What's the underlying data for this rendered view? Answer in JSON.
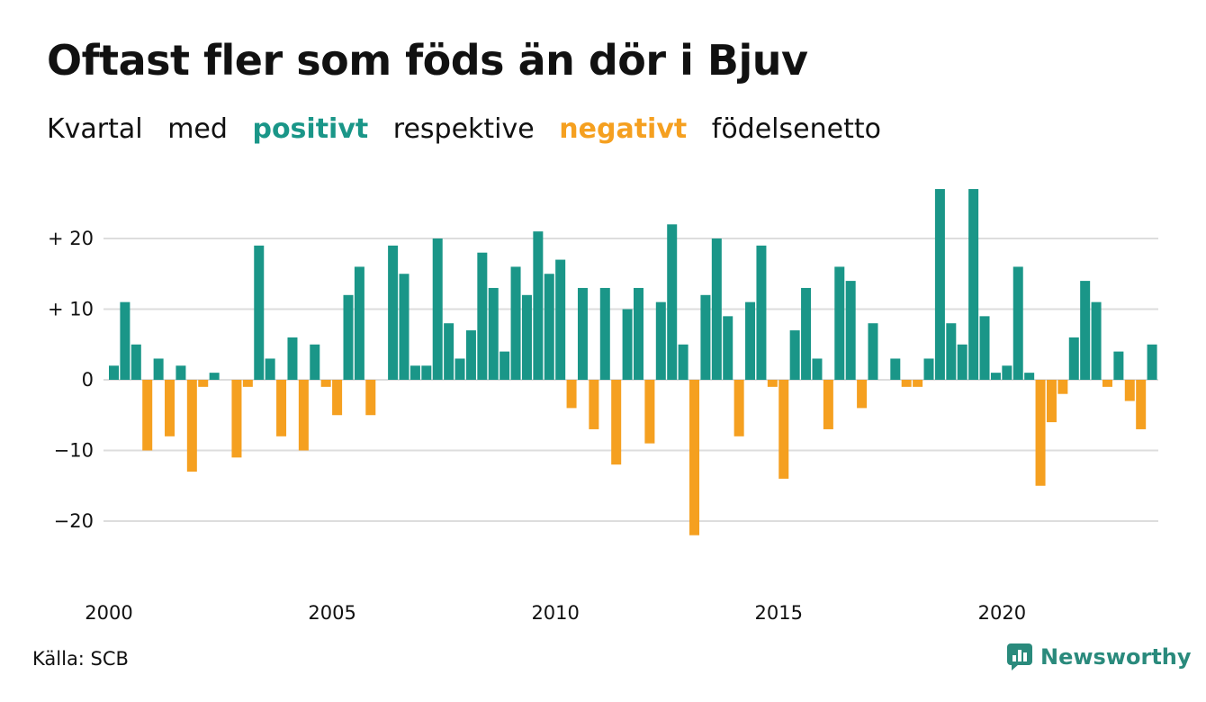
{
  "header": {
    "title": "Oftast fler som föds än dör i Bjuv",
    "subtitle_words": [
      "Kvartal",
      "med",
      "positivt",
      "respektive",
      "negativt",
      "födelsenetto"
    ]
  },
  "colors": {
    "positive": "#1a9688",
    "negative": "#f5a020",
    "grid": "#dddddd",
    "brand": "#2a8a7c"
  },
  "chart_data": {
    "type": "bar",
    "x_start": "2000 Q1",
    "x_tick_labels": [
      "2000",
      "2005",
      "2010",
      "2015",
      "2020"
    ],
    "x_tick_years": [
      2000,
      2005,
      2010,
      2015,
      2020
    ],
    "y_tick_labels": [
      "+ 20",
      "+ 10",
      "0",
      "−10",
      "−20"
    ],
    "y_tick_values": [
      20,
      10,
      0,
      -10,
      -20
    ],
    "ylim": [
      -27,
      27
    ],
    "grid": true,
    "values": [
      2,
      11,
      5,
      -10,
      3,
      -8,
      2,
      -13,
      -1,
      1,
      0,
      -11,
      -1,
      19,
      3,
      -8,
      6,
      -10,
      5,
      -1,
      -5,
      12,
      16,
      -5,
      0,
      19,
      15,
      2,
      2,
      20,
      8,
      3,
      7,
      18,
      13,
      4,
      16,
      12,
      21,
      15,
      17,
      -4,
      13,
      -7,
      13,
      -12,
      10,
      13,
      -9,
      11,
      22,
      5,
      -22,
      12,
      20,
      9,
      -8,
      11,
      19,
      -1,
      -14,
      7,
      13,
      3,
      -7,
      16,
      14,
      -4,
      8,
      0,
      3,
      -1,
      -1,
      3,
      27,
      8,
      5,
      27,
      9,
      1,
      2,
      16,
      1,
      -15,
      -6,
      -2,
      6,
      14,
      11,
      -1,
      4,
      -3,
      -7,
      5
    ]
  },
  "footer": {
    "source": "Källa: SCB",
    "brand": "Newsworthy"
  }
}
